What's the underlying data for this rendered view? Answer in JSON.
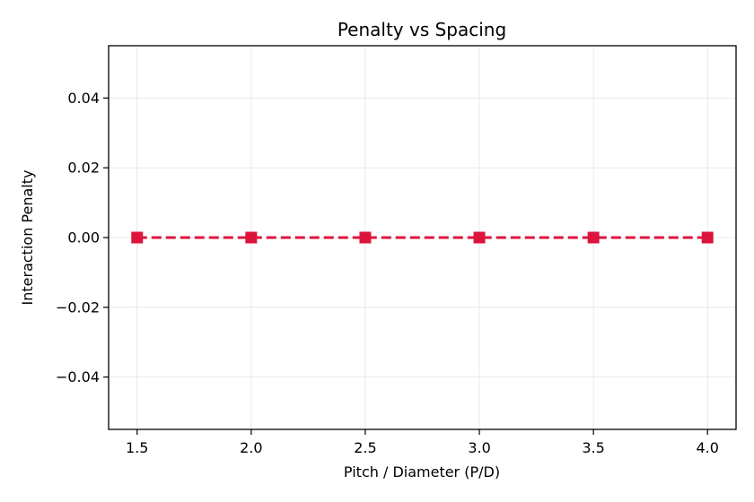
{
  "chart_data": {
    "type": "line",
    "title": "Penalty vs Spacing",
    "xlabel": "Pitch / Diameter (P/D)",
    "ylabel": "Interaction Penalty",
    "xlim": [
      1.375,
      4.125
    ],
    "ylim": [
      -0.055,
      0.055
    ],
    "x_ticks": [
      1.5,
      2.0,
      2.5,
      3.0,
      3.5,
      4.0
    ],
    "x_tick_labels": [
      "1.5",
      "2.0",
      "2.5",
      "3.0",
      "3.5",
      "4.0"
    ],
    "y_ticks": [
      0.04,
      0.02,
      0.0,
      -0.02,
      -0.04
    ],
    "y_tick_labels": [
      "0.04",
      "0.02",
      "0.00",
      "−0.02",
      "−0.04"
    ],
    "grid": true,
    "series": [
      {
        "x": [
          1.5,
          2.0,
          2.5,
          3.0,
          3.5,
          4.0
        ],
        "y": [
          0.0,
          0.0,
          0.0,
          0.0,
          0.0,
          0.0
        ],
        "color": "#dc143c",
        "line_style": "dashed",
        "marker": "square"
      }
    ]
  }
}
